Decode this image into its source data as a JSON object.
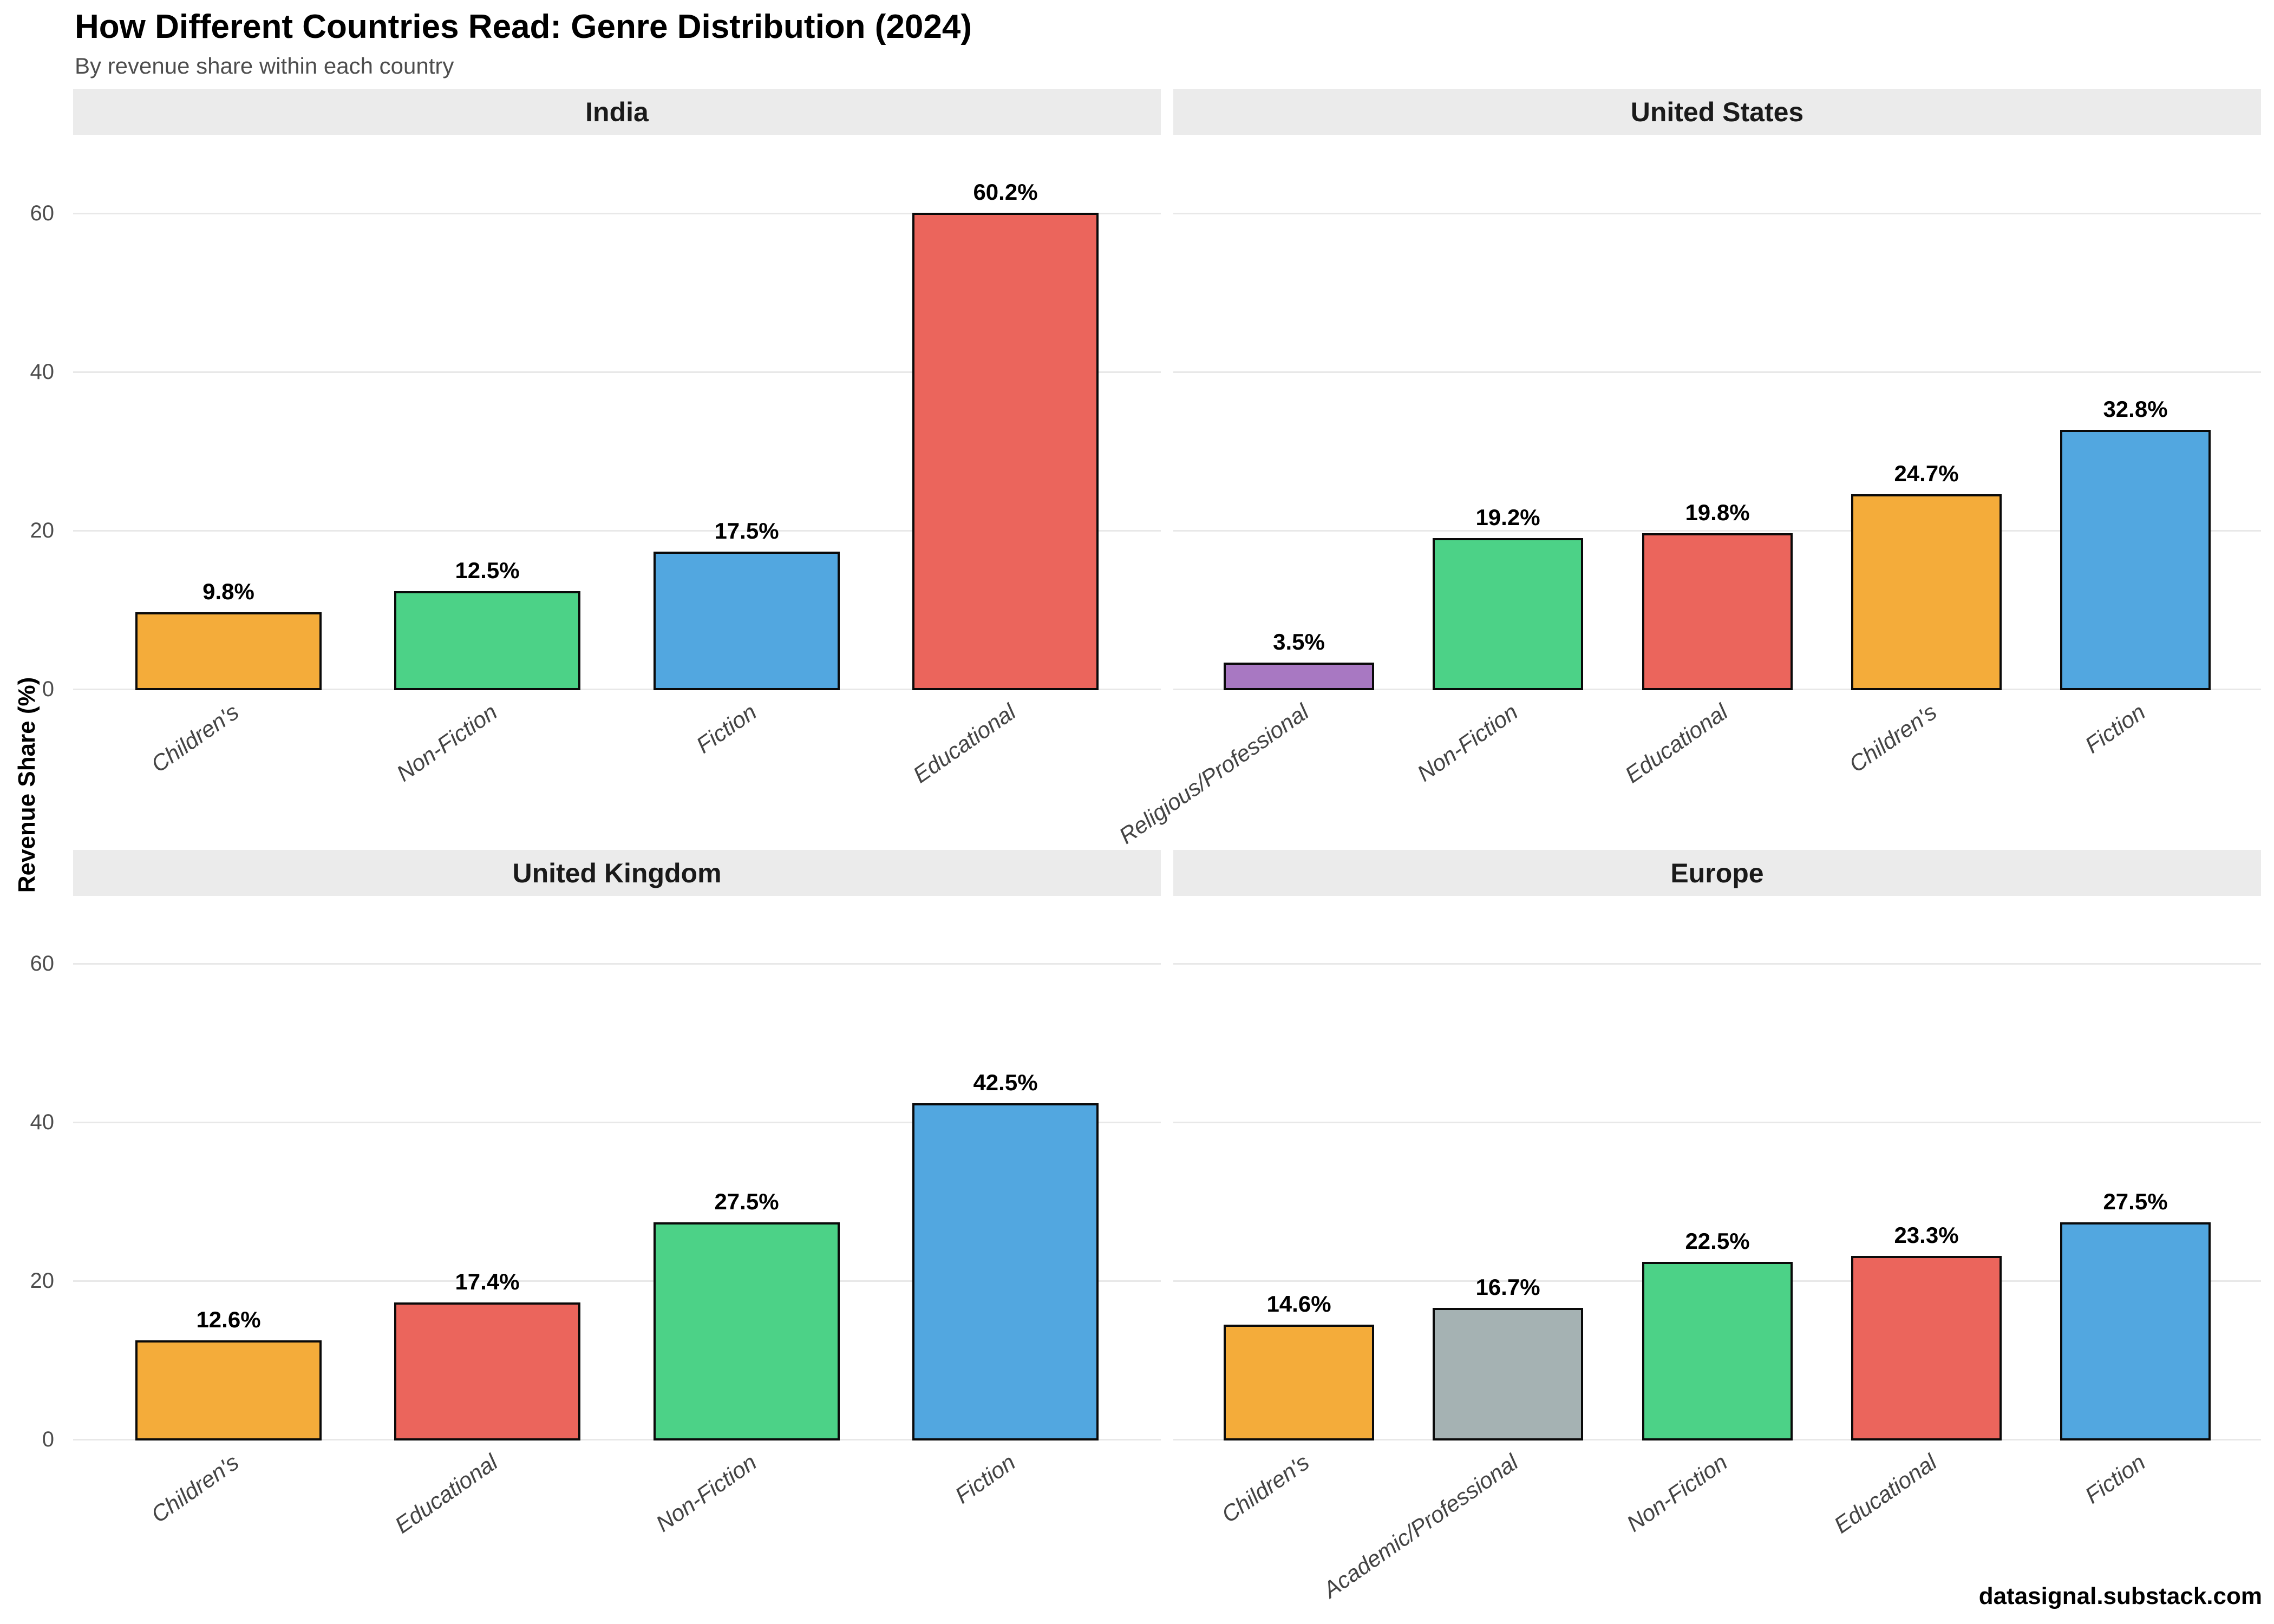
{
  "header": {
    "title": "How Different Countries Read: Genre Distribution (2024)",
    "subtitle": "By revenue share within each country"
  },
  "y_axis": {
    "label": "Revenue Share (%)",
    "ticks": [
      0,
      20,
      40,
      60
    ],
    "ylim": [
      0,
      70
    ],
    "grid": "horizontal-only"
  },
  "footer": {
    "credit": "datasignal.substack.com"
  },
  "style": {
    "strip_background": "#ebebeb",
    "gridline_color": "#e8e8e8",
    "bar_border_color": "#0a0a0a",
    "subtitle_color": "#4d4d4d",
    "tick_label_color": "#4d4d4d",
    "x_label_color": "#444444"
  },
  "genre_colors": {
    "Children's": "#F4AC3A",
    "Non-Fiction": "#4CD287",
    "Fiction": "#52A7E0",
    "Educational": "#EB655C",
    "Religious/Professional": "#A878C2",
    "Academic/Professional": "#A5B2B3"
  },
  "chart_data": [
    {
      "type": "bar",
      "facet": "India",
      "categories": [
        "Children's",
        "Non-Fiction",
        "Fiction",
        "Educational"
      ],
      "values": [
        9.8,
        12.5,
        17.5,
        60.2
      ],
      "value_labels": [
        "9.8%",
        "12.5%",
        "17.5%",
        "60.2%"
      ]
    },
    {
      "type": "bar",
      "facet": "United States",
      "categories": [
        "Religious/Professional",
        "Non-Fiction",
        "Educational",
        "Children's",
        "Fiction"
      ],
      "values": [
        3.5,
        19.2,
        19.8,
        24.7,
        32.8
      ],
      "value_labels": [
        "3.5%",
        "19.2%",
        "19.8%",
        "24.7%",
        "32.8%"
      ]
    },
    {
      "type": "bar",
      "facet": "United Kingdom",
      "categories": [
        "Children's",
        "Educational",
        "Non-Fiction",
        "Fiction"
      ],
      "values": [
        12.6,
        17.4,
        27.5,
        42.5
      ],
      "value_labels": [
        "12.6%",
        "17.4%",
        "27.5%",
        "42.5%"
      ]
    },
    {
      "type": "bar",
      "facet": "Europe",
      "categories": [
        "Children's",
        "Academic/Professional",
        "Non-Fiction",
        "Educational",
        "Fiction"
      ],
      "values": [
        14.6,
        16.7,
        22.5,
        23.3,
        27.5
      ],
      "value_labels": [
        "14.6%",
        "16.7%",
        "22.5%",
        "23.3%",
        "27.5%"
      ]
    }
  ]
}
